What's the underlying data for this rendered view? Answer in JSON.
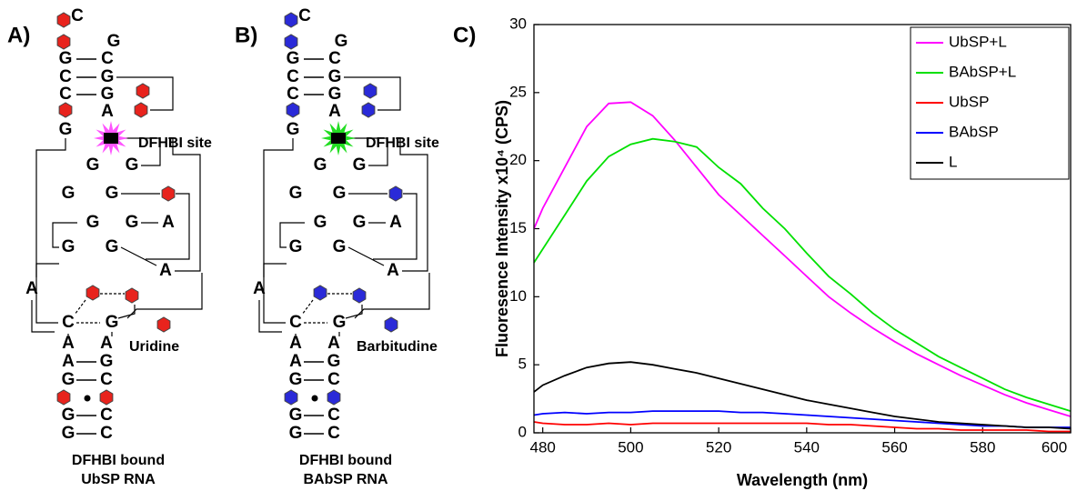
{
  "diagram_a": {
    "panel_label": "A)",
    "nucleotides": [
      "C",
      "G",
      "G",
      "C",
      "C",
      "G",
      "C",
      "G",
      "A",
      "G",
      "G",
      "G",
      "G",
      "G",
      "G",
      "G",
      "G",
      "G",
      "A",
      "A",
      "A",
      "C",
      "G",
      "A",
      "A",
      "A",
      "G",
      "G",
      "C",
      "G",
      "C",
      "G",
      "C"
    ],
    "site_label": "DFHBI site",
    "modification_label": "Uridine",
    "caption": [
      "DFHBI bound",
      "UbSP RNA"
    ],
    "modification_color": "#e8231d",
    "site_color": "#ff55ff"
  },
  "diagram_b": {
    "panel_label": "B)",
    "nucleotides": [
      "C",
      "G",
      "G",
      "C",
      "C",
      "G",
      "C",
      "G",
      "A",
      "G",
      "G",
      "G",
      "G",
      "G",
      "G",
      "G",
      "G",
      "G",
      "A",
      "A",
      "A",
      "C",
      "G",
      "A",
      "A",
      "A",
      "G",
      "G",
      "C",
      "G",
      "C",
      "G",
      "C"
    ],
    "site_label": "DFHBI site",
    "modification_label": "Barbitudine",
    "caption": [
      "DFHBI bound",
      "BAbSP RNA"
    ],
    "modification_color": "#2a2ad8",
    "site_color": "#22dd22"
  },
  "chart_data": {
    "type": "line",
    "panel_label": "C)",
    "xlabel": "Wavelength (nm)",
    "ylabel": "Fluoresence Intensity x10⁴ (CPS)",
    "x": [
      478,
      480,
      485,
      490,
      495,
      500,
      505,
      510,
      515,
      520,
      525,
      530,
      535,
      540,
      545,
      550,
      555,
      560,
      565,
      570,
      575,
      580,
      585,
      590,
      595,
      600
    ],
    "series": [
      {
        "name": "UbSP+L",
        "color": "#ff00ff",
        "values": [
          15,
          16.5,
          19.5,
          22.5,
          24.2,
          24.3,
          23.3,
          21.5,
          19.5,
          17.5,
          16,
          14.5,
          13,
          11.5,
          10,
          8.8,
          7.7,
          6.7,
          5.8,
          5,
          4.2,
          3.5,
          2.8,
          2.2,
          1.7,
          1.2
        ]
      },
      {
        "name": "BAbSP+L",
        "color": "#00e000",
        "values": [
          12.5,
          13.5,
          16,
          18.5,
          20.3,
          21.2,
          21.6,
          21.4,
          21,
          19.5,
          18.3,
          16.5,
          15,
          13.2,
          11.5,
          10.2,
          8.8,
          7.6,
          6.6,
          5.6,
          4.8,
          4,
          3.2,
          2.6,
          2.1,
          1.6
        ]
      },
      {
        "name": "UbSP",
        "color": "#ff0000",
        "values": [
          0.8,
          0.7,
          0.6,
          0.6,
          0.7,
          0.6,
          0.7,
          0.7,
          0.7,
          0.7,
          0.7,
          0.7,
          0.7,
          0.7,
          0.6,
          0.6,
          0.5,
          0.4,
          0.3,
          0.3,
          0.2,
          0.2,
          0.2,
          0.2,
          0.1,
          0.1
        ]
      },
      {
        "name": "BAbSP",
        "color": "#0000ff",
        "values": [
          1.3,
          1.4,
          1.5,
          1.4,
          1.5,
          1.5,
          1.6,
          1.6,
          1.6,
          1.6,
          1.5,
          1.5,
          1.4,
          1.3,
          1.2,
          1.1,
          1.0,
          0.9,
          0.8,
          0.7,
          0.6,
          0.5,
          0.5,
          0.4,
          0.4,
          0.4
        ]
      },
      {
        "name": "L",
        "color": "#000000",
        "values": [
          3,
          3.5,
          4.2,
          4.8,
          5.1,
          5.2,
          5,
          4.7,
          4.4,
          4,
          3.6,
          3.2,
          2.8,
          2.4,
          2.1,
          1.8,
          1.5,
          1.2,
          1,
          0.8,
          0.7,
          0.6,
          0.5,
          0.4,
          0.4,
          0.3
        ]
      }
    ],
    "xlim": [
      478,
      600
    ],
    "xticks": [
      480,
      500,
      520,
      540,
      560,
      580,
      600
    ],
    "ylim": [
      0,
      30
    ],
    "yticks": [
      0,
      5,
      10,
      15,
      20,
      25,
      30
    ],
    "legend": "top-right"
  }
}
